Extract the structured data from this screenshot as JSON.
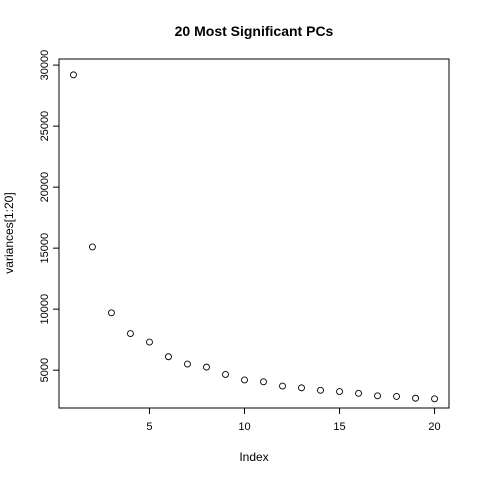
{
  "chart_data": {
    "type": "scatter",
    "title": "20 Most Significant PCs",
    "xlabel": "Index",
    "ylabel": "variances[1:20]",
    "xlim": [
      0.24,
      20.76
    ],
    "ylim": [
      1900,
      30500
    ],
    "x_ticks": [
      5,
      10,
      15,
      20
    ],
    "y_ticks": [
      5000,
      10000,
      15000,
      20000,
      25000,
      30000
    ],
    "grid": false,
    "marker": "open-circle",
    "points": [
      {
        "x": 1,
        "y": 29200
      },
      {
        "x": 2,
        "y": 15100
      },
      {
        "x": 3,
        "y": 9700
      },
      {
        "x": 4,
        "y": 8000
      },
      {
        "x": 5,
        "y": 7300
      },
      {
        "x": 6,
        "y": 6100
      },
      {
        "x": 7,
        "y": 5500
      },
      {
        "x": 8,
        "y": 5250
      },
      {
        "x": 9,
        "y": 4650
      },
      {
        "x": 10,
        "y": 4200
      },
      {
        "x": 11,
        "y": 4050
      },
      {
        "x": 12,
        "y": 3700
      },
      {
        "x": 13,
        "y": 3550
      },
      {
        "x": 14,
        "y": 3350
      },
      {
        "x": 15,
        "y": 3250
      },
      {
        "x": 16,
        "y": 3100
      },
      {
        "x": 17,
        "y": 2900
      },
      {
        "x": 18,
        "y": 2850
      },
      {
        "x": 19,
        "y": 2700
      },
      {
        "x": 20,
        "y": 2650
      }
    ]
  }
}
